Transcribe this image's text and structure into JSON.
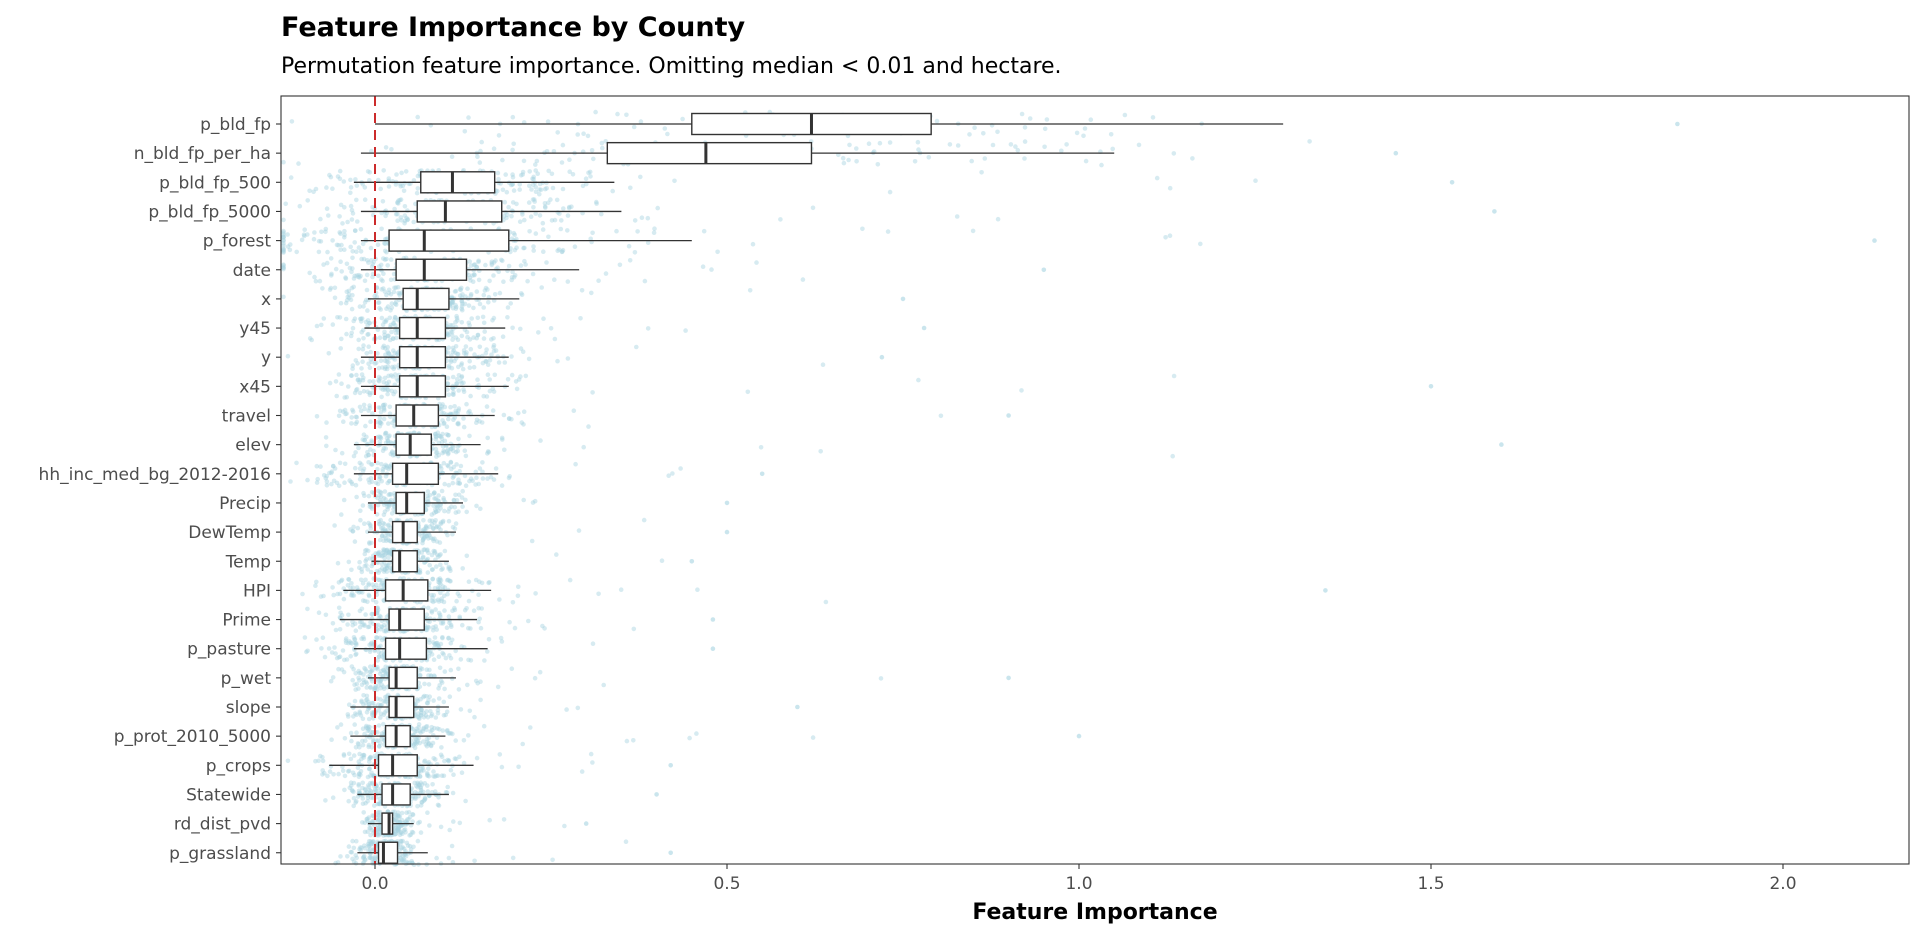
{
  "title": "Feature Importance by County",
  "subtitle": "Permutation feature importance. Omitting median < 0.01 and hectare.",
  "chart_data": {
    "type": "boxplot",
    "xlabel": "Feature Importance",
    "xlim": [
      -0.135,
      2.16
    ],
    "xticks": [
      0.0,
      0.5,
      1.0,
      1.5,
      2.0
    ],
    "xtick_labels": [
      "0.0",
      "0.5",
      "1.0",
      "1.5",
      "2.0"
    ],
    "reference_line": {
      "x": 0,
      "style": "dashed",
      "color": "#cc2b2b"
    },
    "point_color": "#a7d3e1",
    "box_fill": "#ffffff",
    "box_stroke": "#333333",
    "grid": false,
    "features": [
      {
        "name": "p_bld_fp",
        "wlo": 0.0,
        "q1": 0.45,
        "median": 0.62,
        "q3": 0.79,
        "whi": 1.29,
        "max": 1.85,
        "density": 0.35
      },
      {
        "name": "n_bld_fp_per_ha",
        "wlo": -0.02,
        "q1": 0.33,
        "median": 0.47,
        "q3": 0.62,
        "whi": 1.05,
        "max": 1.45,
        "density": 0.45
      },
      {
        "name": "p_bld_fp_500",
        "wlo": -0.03,
        "q1": 0.065,
        "median": 0.11,
        "q3": 0.17,
        "whi": 0.34,
        "max": 1.53,
        "density": 0.8
      },
      {
        "name": "p_bld_fp_5000",
        "wlo": -0.02,
        "q1": 0.06,
        "median": 0.1,
        "q3": 0.18,
        "whi": 0.35,
        "max": 1.59,
        "density": 0.8
      },
      {
        "name": "p_forest",
        "wlo": -0.02,
        "q1": 0.02,
        "median": 0.07,
        "q3": 0.19,
        "whi": 0.45,
        "max": 2.13,
        "density": 0.85
      },
      {
        "name": "date",
        "wlo": -0.02,
        "q1": 0.03,
        "median": 0.07,
        "q3": 0.13,
        "whi": 0.29,
        "max": 0.95,
        "density": 0.9
      },
      {
        "name": "x",
        "wlo": -0.01,
        "q1": 0.04,
        "median": 0.06,
        "q3": 0.105,
        "whi": 0.205,
        "max": 0.75,
        "density": 0.9
      },
      {
        "name": "y45",
        "wlo": -0.015,
        "q1": 0.035,
        "median": 0.06,
        "q3": 0.1,
        "whi": 0.185,
        "max": 0.78,
        "density": 0.9
      },
      {
        "name": "y",
        "wlo": -0.02,
        "q1": 0.035,
        "median": 0.06,
        "q3": 0.1,
        "whi": 0.19,
        "max": 0.72,
        "density": 0.9
      },
      {
        "name": "x45",
        "wlo": -0.02,
        "q1": 0.035,
        "median": 0.06,
        "q3": 0.1,
        "whi": 0.19,
        "max": 1.5,
        "density": 0.9
      },
      {
        "name": "travel",
        "wlo": -0.02,
        "q1": 0.03,
        "median": 0.055,
        "q3": 0.09,
        "whi": 0.17,
        "max": 0.9,
        "density": 0.9
      },
      {
        "name": "elev",
        "wlo": -0.03,
        "q1": 0.03,
        "median": 0.05,
        "q3": 0.08,
        "whi": 0.15,
        "max": 1.6,
        "density": 0.9
      },
      {
        "name": "hh_inc_med_bg_2012-2016",
        "wlo": -0.03,
        "q1": 0.025,
        "median": 0.045,
        "q3": 0.09,
        "whi": 0.175,
        "max": 0.55,
        "density": 0.9
      },
      {
        "name": "Precip",
        "wlo": -0.01,
        "q1": 0.03,
        "median": 0.045,
        "q3": 0.07,
        "whi": 0.125,
        "max": 0.5,
        "density": 0.9
      },
      {
        "name": "DewTemp",
        "wlo": -0.01,
        "q1": 0.025,
        "median": 0.04,
        "q3": 0.06,
        "whi": 0.115,
        "max": 0.5,
        "density": 0.9
      },
      {
        "name": "Temp",
        "wlo": -0.005,
        "q1": 0.025,
        "median": 0.035,
        "q3": 0.06,
        "whi": 0.105,
        "max": 0.45,
        "density": 0.9
      },
      {
        "name": "HPI",
        "wlo": -0.045,
        "q1": 0.015,
        "median": 0.04,
        "q3": 0.075,
        "whi": 0.165,
        "max": 1.35,
        "density": 0.9
      },
      {
        "name": "Prime",
        "wlo": -0.05,
        "q1": 0.02,
        "median": 0.035,
        "q3": 0.07,
        "whi": 0.145,
        "max": 0.48,
        "density": 0.9
      },
      {
        "name": "p_pasture",
        "wlo": -0.03,
        "q1": 0.015,
        "median": 0.035,
        "q3": 0.073,
        "whi": 0.16,
        "max": 0.48,
        "density": 0.9
      },
      {
        "name": "p_wet",
        "wlo": -0.01,
        "q1": 0.02,
        "median": 0.03,
        "q3": 0.06,
        "whi": 0.115,
        "max": 0.9,
        "density": 0.9
      },
      {
        "name": "slope",
        "wlo": -0.035,
        "q1": 0.02,
        "median": 0.03,
        "q3": 0.055,
        "whi": 0.105,
        "max": 0.6,
        "density": 0.9
      },
      {
        "name": "p_prot_2010_5000",
        "wlo": -0.035,
        "q1": 0.015,
        "median": 0.03,
        "q3": 0.05,
        "whi": 0.1,
        "max": 1.0,
        "density": 0.9
      },
      {
        "name": "p_crops",
        "wlo": -0.065,
        "q1": 0.005,
        "median": 0.025,
        "q3": 0.06,
        "whi": 0.14,
        "max": 0.42,
        "density": 0.9
      },
      {
        "name": "Statewide",
        "wlo": -0.025,
        "q1": 0.01,
        "median": 0.025,
        "q3": 0.05,
        "whi": 0.105,
        "max": 0.4,
        "density": 0.9
      },
      {
        "name": "rd_dist_pvd",
        "wlo": -0.01,
        "q1": 0.01,
        "median": 0.02,
        "q3": 0.025,
        "whi": 0.055,
        "max": 0.3,
        "density": 0.9
      },
      {
        "name": "p_grassland",
        "wlo": -0.025,
        "q1": 0.005,
        "median": 0.012,
        "q3": 0.032,
        "whi": 0.075,
        "max": 0.42,
        "density": 0.9
      }
    ]
  }
}
